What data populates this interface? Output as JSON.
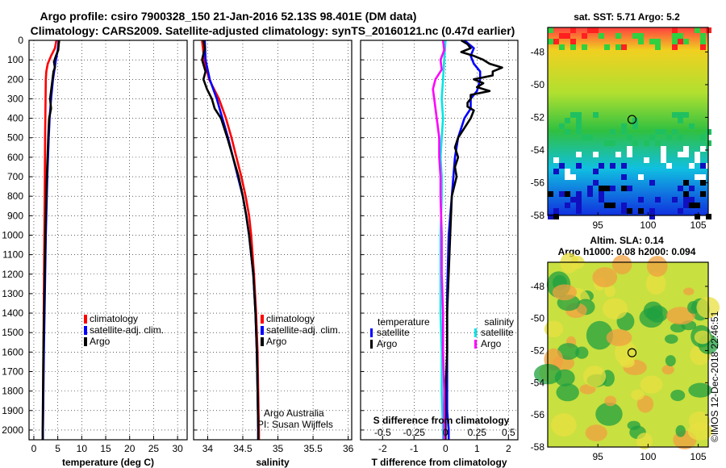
{
  "title": {
    "line1": "Argo profile: csiro 7900328_150 21-Jan-2016 52.13S 98.401E (DM data)",
    "line2": "Climatology: CARS2009. Satellite-adjusted climatology: synTS_20160121.nc (0.47d earlier)"
  },
  "colors": {
    "climatology": "#ff0000",
    "satellite": "#0000ff",
    "argo": "#000000",
    "sat_salinity": "#00e5e5",
    "argo_salinity_diff": "#ff00ff"
  },
  "depth_axis": {
    "range": [
      0,
      2050
    ],
    "ticks": [
      "0",
      "100",
      "200",
      "300",
      "400",
      "500",
      "600",
      "700",
      "800",
      "900",
      "1000",
      "1100",
      "1200",
      "1300",
      "1400",
      "1500",
      "1600",
      "1700",
      "1800",
      "1900",
      "2000"
    ]
  },
  "chart_data": [
    {
      "type": "line",
      "title": "",
      "xlabel": "temperature (deg C)",
      "ylabel": "depth",
      "xlim": [
        -1,
        32
      ],
      "ylim": [
        2050,
        0
      ],
      "xticks": [
        "0",
        "5",
        "10",
        "15",
        "20",
        "25",
        "30"
      ],
      "grid": true,
      "legend": [
        "climatology",
        "satellite-adj. clim.",
        "Argo"
      ],
      "legend_position": "lower-right",
      "series": [
        {
          "name": "climatology",
          "color": "#ff0000",
          "depth": [
            0,
            40,
            80,
            120,
            160,
            200,
            300,
            400,
            500,
            700,
            1000,
            1300,
            1600,
            2000,
            2050
          ],
          "values": [
            4.7,
            4.4,
            3.6,
            2.9,
            2.6,
            2.5,
            2.45,
            2.4,
            2.35,
            2.3,
            2.2,
            2.1,
            2.0,
            1.9,
            1.9
          ]
        },
        {
          "name": "satellite-adj. clim.",
          "color": "#0000ff",
          "depth": [
            0,
            50,
            100,
            150,
            200,
            300,
            400,
            500,
            700,
            1000,
            1300,
            1600,
            2000,
            2050
          ],
          "values": [
            5.2,
            5.0,
            4.6,
            4.3,
            4.0,
            3.6,
            3.3,
            3.1,
            2.8,
            2.5,
            2.3,
            2.1,
            1.9,
            1.9
          ]
        },
        {
          "name": "Argo",
          "color": "#000000",
          "depth": [
            0,
            20,
            50,
            80,
            110,
            140,
            160,
            200,
            260,
            300,
            350,
            400,
            500,
            700,
            1000,
            1300,
            1600,
            2000,
            2050
          ],
          "values": [
            5.3,
            5.2,
            5.1,
            4.6,
            4.2,
            4.4,
            4.1,
            3.9,
            3.6,
            3.4,
            3.6,
            3.2,
            3.0,
            2.7,
            2.4,
            2.2,
            2.0,
            1.85,
            1.85
          ]
        }
      ]
    },
    {
      "type": "line",
      "title": "",
      "xlabel": "salinity",
      "ylabel": "depth",
      "xlim": [
        33.8,
        36.05
      ],
      "ylim": [
        2050,
        0
      ],
      "xticks": [
        "34",
        "34.5",
        "35",
        "35.5",
        "36"
      ],
      "grid": true,
      "legend": [
        "climatology",
        "satellite-adj. clim.",
        "Argo"
      ],
      "legend_position": "lower-right",
      "annotations": [
        "Argo Australia",
        "PI: Susan Wijffels"
      ],
      "series": [
        {
          "name": "climatology",
          "color": "#ff0000",
          "depth": [
            0,
            100,
            200,
            300,
            400,
            500,
            600,
            700,
            800,
            900,
            1000,
            1200,
            1400,
            1600,
            1800,
            2000,
            2050
          ],
          "values": [
            33.92,
            33.95,
            34.02,
            34.16,
            34.26,
            34.34,
            34.41,
            34.48,
            34.54,
            34.59,
            34.62,
            34.66,
            34.69,
            34.71,
            34.72,
            34.73,
            34.73
          ]
        },
        {
          "name": "satellite-adj. clim.",
          "color": "#0000ff",
          "depth": [
            0,
            100,
            200,
            300,
            400,
            500,
            600,
            700,
            800,
            900,
            1000,
            1200,
            1400,
            1600,
            1800,
            2000,
            2050
          ],
          "values": [
            33.96,
            33.97,
            34.03,
            34.13,
            34.21,
            34.29,
            34.36,
            34.43,
            34.5,
            34.55,
            34.59,
            34.65,
            34.68,
            34.7,
            34.71,
            34.72,
            34.72
          ]
        },
        {
          "name": "Argo",
          "color": "#000000",
          "depth": [
            0,
            40,
            100,
            160,
            200,
            250,
            300,
            350,
            400,
            500,
            600,
            700,
            800,
            900,
            1000,
            1200,
            1400,
            1600,
            1800,
            2000,
            2050
          ],
          "values": [
            33.94,
            33.96,
            33.92,
            33.97,
            33.94,
            33.99,
            34.06,
            34.1,
            34.19,
            34.28,
            34.36,
            34.44,
            34.5,
            34.55,
            34.59,
            34.65,
            34.68,
            34.7,
            34.71,
            34.72,
            34.72
          ]
        }
      ]
    },
    {
      "type": "line",
      "title": "",
      "xlabel": "T difference from climatology",
      "x2label": "S difference from climatology",
      "ylabel": "depth",
      "xlim": [
        -2.7,
        2.3
      ],
      "ylim": [
        2050,
        0
      ],
      "xticks": [
        "-2",
        "-1",
        "0",
        "1",
        "2"
      ],
      "x2ticks": [
        "-0.5",
        "-0.25",
        "0",
        "0.25",
        "0.5"
      ],
      "grid": true,
      "legend_temperature": [
        "temperature",
        "satellite",
        "Argo"
      ],
      "legend_salinity": [
        "salinity",
        "satellite",
        "Argo"
      ],
      "series": [
        {
          "name": "temperature satellite",
          "color": "#0000ff",
          "depth": [
            0,
            40,
            80,
            120,
            160,
            200,
            260,
            300,
            350,
            400,
            450,
            500,
            600,
            800,
            1000,
            1300,
            1600,
            1900,
            2000,
            2050
          ],
          "values": [
            0.6,
            0.9,
            0.8,
            0.9,
            1.1,
            1.1,
            1.0,
            0.8,
            0.8,
            0.6,
            0.5,
            0.4,
            0.3,
            0.2,
            0.1,
            0.05,
            0.05,
            0.05,
            0.1,
            0.1
          ]
        },
        {
          "name": "temperature Argo",
          "color": "#000000",
          "depth": [
            0,
            20,
            40,
            60,
            80,
            100,
            120,
            140,
            160,
            180,
            200,
            220,
            240,
            260,
            280,
            300,
            320,
            340,
            360,
            400,
            450,
            500,
            550,
            600,
            650,
            700,
            800,
            1000,
            1200,
            1400,
            1600,
            1800,
            2000,
            2050
          ],
          "values": [
            0.5,
            0.7,
            0.8,
            0.5,
            0.9,
            1.2,
            1.4,
            1.8,
            1.5,
            1.5,
            0.9,
            1.2,
            1.0,
            1.4,
            0.8,
            0.8,
            0.7,
            0.7,
            0.9,
            0.8,
            0.6,
            0.4,
            0.3,
            0.4,
            0.3,
            0.35,
            0.2,
            0.15,
            0.1,
            0.05,
            0.05,
            0.0,
            0.0,
            0.0
          ]
        },
        {
          "name": "salinity satellite",
          "color": "#00e5e5",
          "depth": [
            0,
            100,
            200,
            300,
            400,
            500,
            600,
            700,
            800,
            1000,
            1200,
            1400,
            1600,
            1800,
            2000,
            2050
          ],
          "values": [
            0.0,
            -0.01,
            -0.02,
            -0.03,
            -0.02,
            -0.03,
            -0.04,
            -0.03,
            -0.03,
            -0.04,
            -0.04,
            -0.04,
            -0.03,
            -0.03,
            -0.02,
            -0.02
          ]
        },
        {
          "name": "salinity Argo",
          "color": "#ff00ff",
          "depth": [
            0,
            50,
            100,
            150,
            200,
            250,
            300,
            400,
            500,
            600,
            700,
            800,
            1000,
            1200,
            1400,
            1600,
            1800,
            2000,
            2050
          ],
          "values": [
            -0.02,
            -0.01,
            -0.04,
            -0.03,
            -0.08,
            -0.1,
            -0.09,
            -0.07,
            -0.05,
            -0.05,
            -0.04,
            -0.04,
            -0.03,
            -0.03,
            -0.02,
            -0.02,
            -0.01,
            -0.01,
            -0.01
          ]
        }
      ]
    }
  ],
  "map_sst": {
    "title": "sat. SST: 5.71 Argo: 5.2",
    "lat_ticks": [
      "-48",
      "-50",
      "-52",
      "-54",
      "-56",
      "-58"
    ],
    "lon_ticks": [
      "95",
      "100",
      "105"
    ],
    "lat_range": [
      -58,
      -46.5
    ],
    "lon_range": [
      90,
      106
    ],
    "marker": {
      "lon": 98.401,
      "lat": -52.13
    }
  },
  "map_sla": {
    "title_line1": "Altim. SLA: 0.14",
    "title_line2": "Argo h1000: 0.08 h2000: 0.094",
    "lat_ticks": [
      "-48",
      "-50",
      "-52",
      "-54",
      "-56",
      "-58"
    ],
    "lon_ticks": [
      "95",
      "100",
      "105"
    ],
    "lat_range": [
      -58,
      -46.5
    ],
    "lon_range": [
      90,
      106
    ],
    "marker": {
      "lon": 98.401,
      "lat": -52.13
    }
  },
  "credit": "©IMOS 12-Dec-2018 22:46:51"
}
